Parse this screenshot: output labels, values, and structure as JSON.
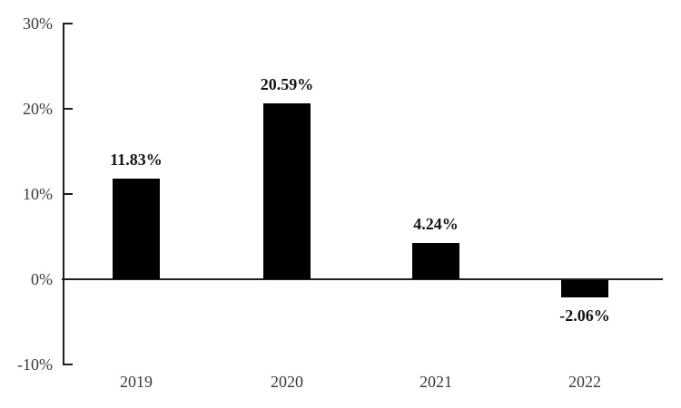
{
  "page": {
    "background_color": "#ffffff"
  },
  "chart_data": {
    "type": "bar",
    "title": "",
    "xlabel": "",
    "ylabel": "",
    "categories": [
      "2019",
      "2020",
      "2021",
      "2022"
    ],
    "values": [
      11.83,
      20.59,
      4.24,
      -2.06
    ],
    "value_labels": [
      "11.83%",
      "20.59%",
      "4.24%",
      "-2.06%"
    ],
    "y_ticks": [
      {
        "value": 30,
        "label": "30%"
      },
      {
        "value": 20,
        "label": "20%"
      },
      {
        "value": 10,
        "label": "10%"
      },
      {
        "value": 0,
        "label": "0%"
      },
      {
        "value": -10,
        "label": "-10%"
      }
    ],
    "ylim": [
      -10,
      30
    ],
    "grid": false,
    "legend": null,
    "bar_color": "#000000",
    "axis_color": "#1f1f1f",
    "value_label_color": "#141414",
    "tick_label_color": "#3a3a3a"
  }
}
